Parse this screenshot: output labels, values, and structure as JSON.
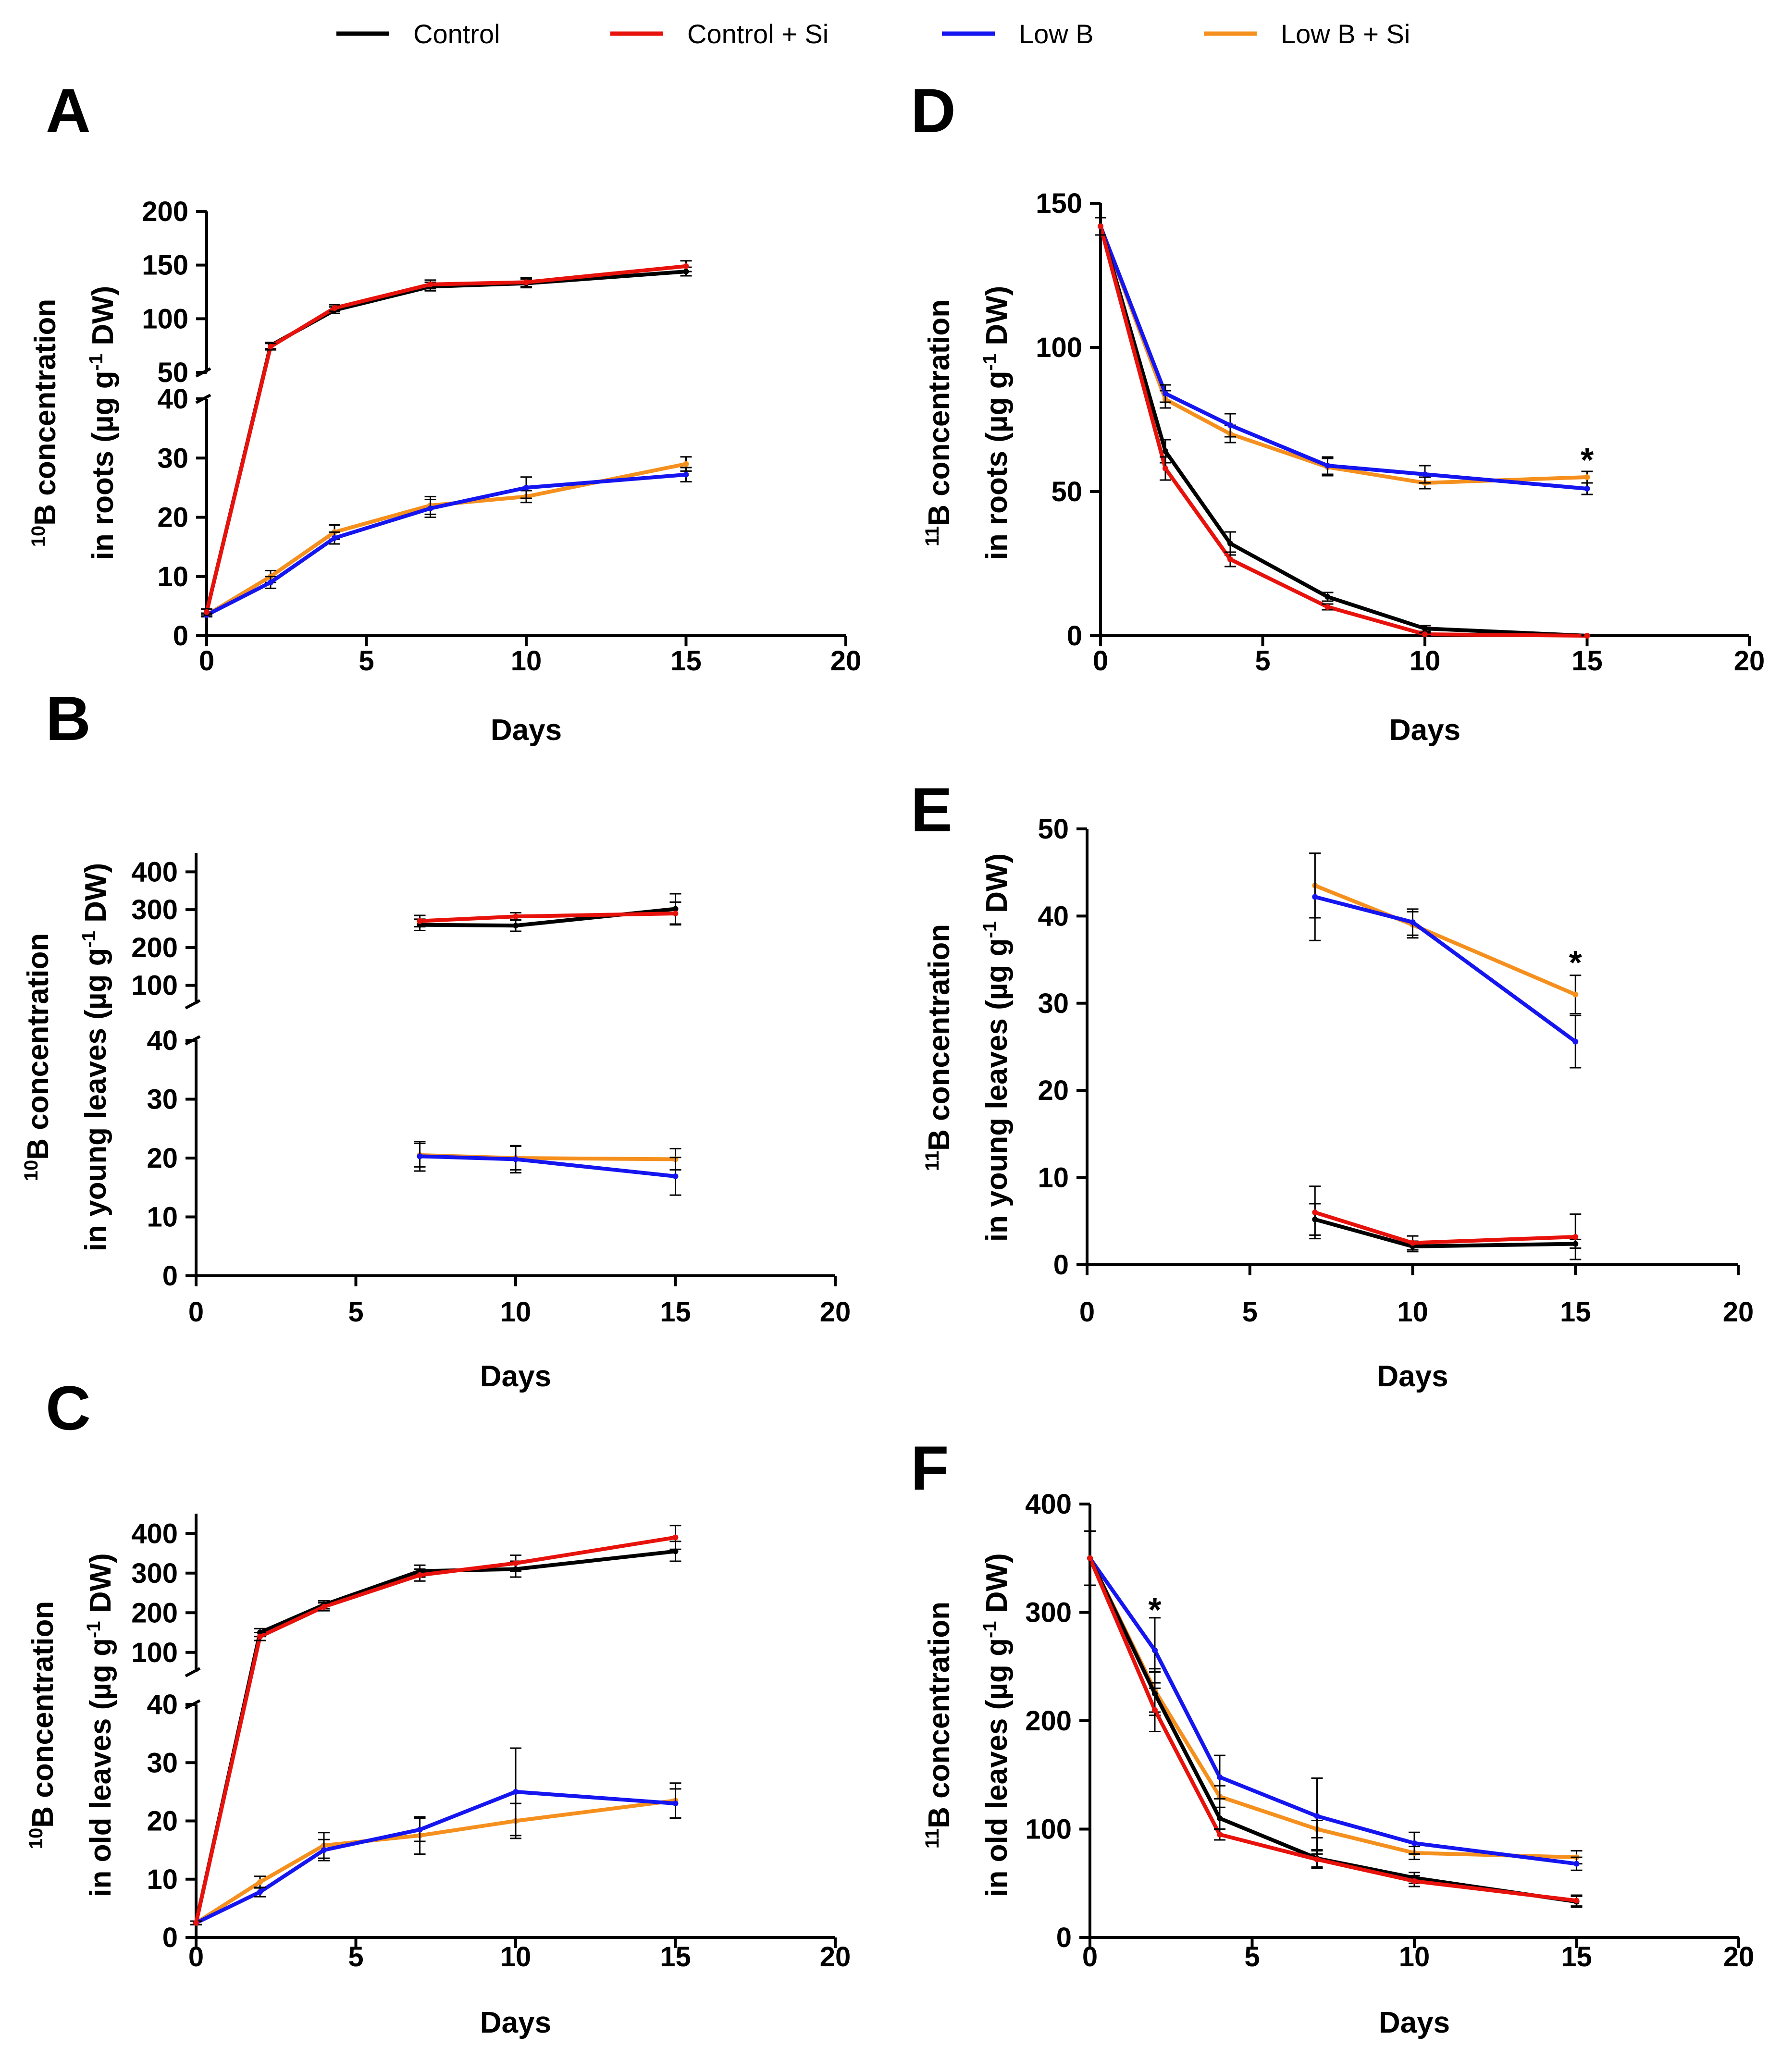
{
  "legend": [
    {
      "label": "Control",
      "color": "#000000"
    },
    {
      "label": "Control + Si",
      "color": "#e8120c"
    },
    {
      "label": "Low B",
      "color": "#1515f0"
    },
    {
      "label": "Low B + Si",
      "color": "#f5901e"
    }
  ],
  "chart_data": [
    {
      "type": "line",
      "panel": "A",
      "xlabel": "Days",
      "ylabel_sup": "10",
      "ylabel_line1": "B concentration",
      "ylabel_line2": "in roots (µg g",
      "ylabel_sup2": "-1",
      "ylabel_tail": " DW)",
      "xlim": [
        0,
        20
      ],
      "xticks": [
        "0",
        "5",
        "10",
        "15",
        "20"
      ],
      "upper": {
        "ylim": [
          50,
          200
        ],
        "ticks": [
          "50",
          "100",
          "150",
          "200"
        ]
      },
      "lower": {
        "ylim": [
          0,
          40
        ],
        "ticks": [
          "0",
          "10",
          "20",
          "30",
          "40"
        ]
      },
      "series": [
        {
          "name": "Control",
          "x": [
            0,
            2,
            4,
            7,
            10,
            15
          ],
          "y": [
            4,
            75,
            108,
            130,
            133,
            144
          ],
          "err": [
            0.5,
            3,
            3,
            4,
            4,
            4
          ]
        },
        {
          "name": "Control + Si",
          "x": [
            0,
            2,
            4,
            7,
            10,
            15
          ],
          "y": [
            4,
            74,
            110,
            132,
            134,
            149
          ],
          "err": [
            0.5,
            3,
            3,
            4,
            4,
            5
          ]
        },
        {
          "name": "Low B",
          "x": [
            0,
            2,
            4,
            7,
            10,
            15
          ],
          "y": [
            3.5,
            9,
            16.5,
            21.5,
            25,
            27.2
          ],
          "err": [
            0.3,
            1,
            1,
            1.5,
            1.8,
            1.2
          ]
        },
        {
          "name": "Low B + Si",
          "x": [
            0,
            2,
            4,
            7,
            10,
            15
          ],
          "y": [
            3.5,
            10,
            17.5,
            22,
            23.5,
            29
          ],
          "err": [
            0.3,
            1,
            1.2,
            1.5,
            1,
            1.2
          ]
        }
      ],
      "annotations": []
    },
    {
      "type": "line",
      "panel": "B",
      "xlabel": "Days",
      "ylabel_sup": "10",
      "ylabel_line1": "B concentration",
      "ylabel_line2": "in young leaves (µg g",
      "ylabel_sup2": "-1",
      "ylabel_tail": " DW)",
      "xlim": [
        0,
        20
      ],
      "xticks": [
        "0",
        "5",
        "10",
        "15",
        "20"
      ],
      "upper": {
        "ylim": [
          50,
          450
        ],
        "ticks": [
          "100",
          "200",
          "300",
          "400"
        ]
      },
      "lower": {
        "ylim": [
          0,
          40
        ],
        "ticks": [
          "0",
          "10",
          "20",
          "30",
          "40"
        ]
      },
      "series": [
        {
          "name": "Control",
          "x": [
            7,
            10,
            15
          ],
          "y": [
            260,
            258,
            302
          ],
          "err": [
            15,
            15,
            40
          ]
        },
        {
          "name": "Control + Si",
          "x": [
            7,
            10,
            15
          ],
          "y": [
            270,
            282,
            290
          ],
          "err": [
            15,
            10,
            30
          ]
        },
        {
          "name": "Low B",
          "x": [
            7,
            10,
            15
          ],
          "y": [
            20.3,
            19.8,
            16.9
          ],
          "err": [
            2.5,
            2.3,
            3.2
          ]
        },
        {
          "name": "Low B + Si",
          "x": [
            7,
            10,
            15
          ],
          "y": [
            20.5,
            20,
            19.8
          ],
          "err": [
            2,
            2,
            1.8
          ]
        }
      ],
      "annotations": []
    },
    {
      "type": "line",
      "panel": "C",
      "xlabel": "Days",
      "ylabel_sup": "10",
      "ylabel_line1": "B concentration",
      "ylabel_line2": "in old leaves (µg g",
      "ylabel_sup2": "-1",
      "ylabel_tail": " DW)",
      "xlim": [
        0,
        20
      ],
      "xticks": [
        "0",
        "5",
        "10",
        "15",
        "20"
      ],
      "upper": {
        "ylim": [
          50,
          450
        ],
        "ticks": [
          "100",
          "200",
          "300",
          "400"
        ]
      },
      "lower": {
        "ylim": [
          0,
          40
        ],
        "ticks": [
          "0",
          "10",
          "20",
          "30",
          "40"
        ]
      },
      "series": [
        {
          "name": "Control",
          "x": [
            0,
            2,
            4,
            7,
            10,
            15
          ],
          "y": [
            2.5,
            150,
            220,
            305,
            310,
            355
          ],
          "err": [
            0.3,
            10,
            10,
            15,
            20,
            25
          ]
        },
        {
          "name": "Control + Si",
          "x": [
            0,
            2,
            4,
            7,
            10,
            15
          ],
          "y": [
            2.5,
            140,
            215,
            295,
            325,
            390
          ],
          "err": [
            0.3,
            10,
            10,
            15,
            20,
            30
          ]
        },
        {
          "name": "Low B",
          "x": [
            0,
            2,
            4,
            7,
            10,
            15
          ],
          "y": [
            2.5,
            7.8,
            15,
            18.5,
            25,
            23
          ],
          "err": [
            0.3,
            0.8,
            1.8,
            2,
            7.5,
            2.5
          ]
        },
        {
          "name": "Low B + Si",
          "x": [
            0,
            2,
            4,
            7,
            10,
            15
          ],
          "y": [
            2.5,
            9.5,
            15.8,
            17.5,
            20,
            23.5
          ],
          "err": [
            0.3,
            1,
            2.2,
            3.2,
            3,
            3
          ]
        }
      ],
      "annotations": []
    },
    {
      "type": "line",
      "panel": "D",
      "xlabel": "Days",
      "ylabel_sup": "11",
      "ylabel_line1": "B concentration",
      "ylabel_line2": "in roots (µg g",
      "ylabel_sup2": "-1",
      "ylabel_tail": " DW)",
      "xlim": [
        0,
        20
      ],
      "xticks": [
        "0",
        "5",
        "10",
        "15",
        "20"
      ],
      "ylim": [
        0,
        150
      ],
      "yticks": [
        "0",
        "50",
        "100",
        "150"
      ],
      "series": [
        {
          "name": "Control",
          "x": [
            0,
            2,
            4,
            7,
            10,
            15
          ],
          "y": [
            142,
            64,
            32,
            13.5,
            2.5,
            0
          ],
          "err": [
            3,
            4,
            4,
            1.5,
            1,
            0.3
          ]
        },
        {
          "name": "Control + Si",
          "x": [
            0,
            2,
            4,
            7,
            10,
            15
          ],
          "y": [
            142,
            58,
            26.5,
            10,
            0.5,
            0
          ],
          "err": [
            3,
            4,
            2.5,
            1,
            0.5,
            0.3
          ]
        },
        {
          "name": "Low B",
          "x": [
            0,
            2,
            4,
            7,
            10,
            15
          ],
          "y": [
            142,
            84,
            73,
            59,
            56,
            51
          ],
          "err": [
            3,
            3,
            4,
            3,
            3,
            2
          ]
        },
        {
          "name": "Low B + Si",
          "x": [
            0,
            2,
            4,
            7,
            10,
            15
          ],
          "y": [
            142,
            82,
            70,
            58.5,
            53,
            55
          ],
          "err": [
            3,
            3,
            3,
            3,
            2,
            2
          ]
        }
      ],
      "annotations": [
        {
          "text": "*",
          "x": 15,
          "y": 62
        }
      ]
    },
    {
      "type": "line",
      "panel": "E",
      "xlabel": "Days",
      "ylabel_sup": "11",
      "ylabel_line1": "B concentration",
      "ylabel_line2": "in young leaves (µg g",
      "ylabel_sup2": "-1",
      "ylabel_tail": " DW)",
      "xlim": [
        0,
        20
      ],
      "xticks": [
        "0",
        "5",
        "10",
        "15",
        "20"
      ],
      "ylim": [
        0,
        50
      ],
      "yticks": [
        "0",
        "10",
        "20",
        "30",
        "40",
        "50"
      ],
      "series": [
        {
          "name": "Control",
          "x": [
            7,
            10,
            15
          ],
          "y": [
            5.2,
            2.1,
            2.4
          ],
          "err": [
            1.8,
            0.6,
            0.5
          ]
        },
        {
          "name": "Control + Si",
          "x": [
            7,
            10,
            15
          ],
          "y": [
            6,
            2.5,
            3.2
          ],
          "err": [
            3,
            0.8,
            2.6
          ]
        },
        {
          "name": "Low B",
          "x": [
            7,
            10,
            15
          ],
          "y": [
            42.2,
            39.3,
            25.6
          ],
          "err": [
            5,
            1.5,
            3
          ]
        },
        {
          "name": "Low B + Si",
          "x": [
            7,
            10,
            15
          ],
          "y": [
            43.5,
            39,
            31
          ],
          "err": [
            3.7,
            1.5,
            2.2
          ]
        }
      ],
      "annotations": [
        {
          "text": "*",
          "x": 15,
          "y": 35
        }
      ]
    },
    {
      "type": "line",
      "panel": "F",
      "xlabel": "Days",
      "ylabel_sup": "11",
      "ylabel_line1": "B concentration",
      "ylabel_line2": "in old leaves (µg g",
      "ylabel_sup2": "-1",
      "ylabel_tail": " DW)",
      "xlim": [
        0,
        20
      ],
      "xticks": [
        "0",
        "5",
        "10",
        "15",
        "20"
      ],
      "ylim": [
        0,
        400
      ],
      "yticks": [
        "0",
        "100",
        "200",
        "300",
        "400"
      ],
      "series": [
        {
          "name": "Control",
          "x": [
            0,
            2,
            4,
            7,
            10,
            15
          ],
          "y": [
            350,
            225,
            110,
            73,
            55,
            33
          ],
          "err": [
            25,
            20,
            10,
            8,
            5,
            5
          ]
        },
        {
          "name": "Control + Si",
          "x": [
            0,
            2,
            4,
            7,
            10,
            15
          ],
          "y": [
            350,
            210,
            95,
            72,
            52,
            34
          ],
          "err": [
            25,
            20,
            5,
            8,
            5,
            5
          ]
        },
        {
          "name": "Low B",
          "x": [
            0,
            2,
            4,
            7,
            10,
            15
          ],
          "y": [
            350,
            265,
            148,
            112,
            87,
            68
          ],
          "err": [
            25,
            30,
            20,
            35,
            10,
            6
          ]
        },
        {
          "name": "Low B + Si",
          "x": [
            0,
            2,
            4,
            7,
            10,
            15
          ],
          "y": [
            350,
            228,
            130,
            100,
            78,
            74
          ],
          "err": [
            25,
            20,
            10,
            8,
            6,
            6
          ]
        }
      ],
      "annotations": [
        {
          "text": "*",
          "x": 2,
          "y": 305
        }
      ]
    }
  ]
}
